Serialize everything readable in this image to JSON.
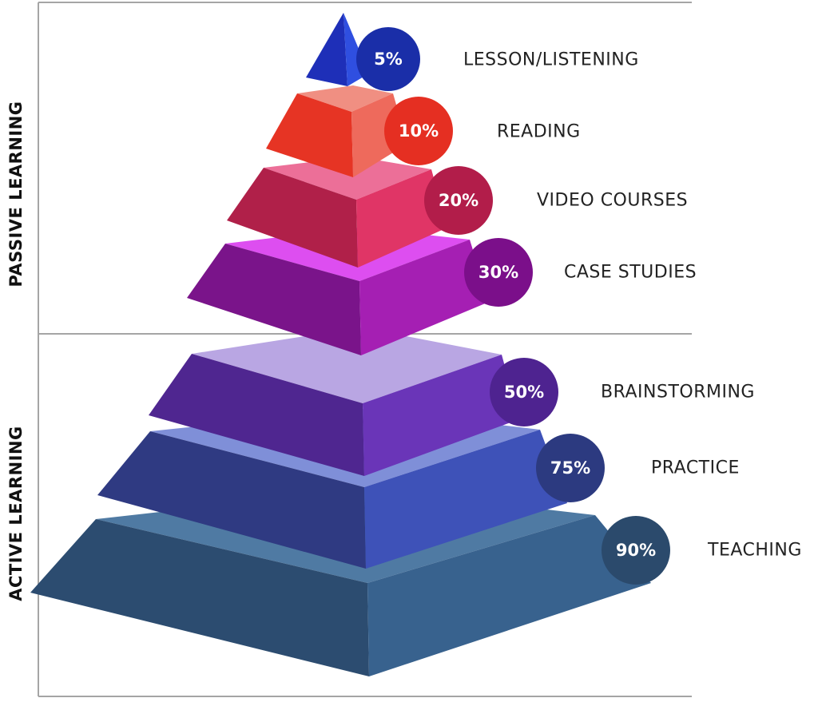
{
  "sections": {
    "passive": "PASSIVE LEARNING",
    "active": "ACTIVE LEARNING"
  },
  "levels": [
    {
      "pct": "5%",
      "label": "LESSON/LISTENING",
      "colors": {
        "left": "#1e2fb8",
        "right": "#2f4fe0",
        "top": "#2f4fe0",
        "circle": "#1a2ea8"
      }
    },
    {
      "pct": "10%",
      "label": "READING",
      "colors": {
        "left": "#e63424",
        "right": "#ee6a5c",
        "top": "#f08f82",
        "circle": "#e52f22"
      }
    },
    {
      "pct": "20%",
      "label": "VIDEO COURSES",
      "colors": {
        "left": "#b02049",
        "right": "#e03566",
        "top": "#ec6f98",
        "circle": "#b21d4a"
      }
    },
    {
      "pct": "30%",
      "label": "CASE STUDIES",
      "colors": {
        "left": "#7a148a",
        "right": "#a51fb3",
        "top": "#dd4ef0",
        "circle": "#7b0f8a"
      }
    },
    {
      "pct": "50%",
      "label": "BRAINSTORMING",
      "colors": {
        "left": "#4f2690",
        "right": "#6a35b8",
        "top": "#b9a6e3",
        "circle": "#4e2390"
      }
    },
    {
      "pct": "75%",
      "label": "PRACTICE",
      "colors": {
        "left": "#2f3a82",
        "right": "#3e52b8",
        "top": "#7f8fd8",
        "circle": "#2c3a80"
      }
    },
    {
      "pct": "90%",
      "label": "TEACHING",
      "colors": {
        "left": "#2c4c70",
        "right": "#38628e",
        "top": "#4f7aa3",
        "circle": "#2b4a6c"
      }
    }
  ]
}
